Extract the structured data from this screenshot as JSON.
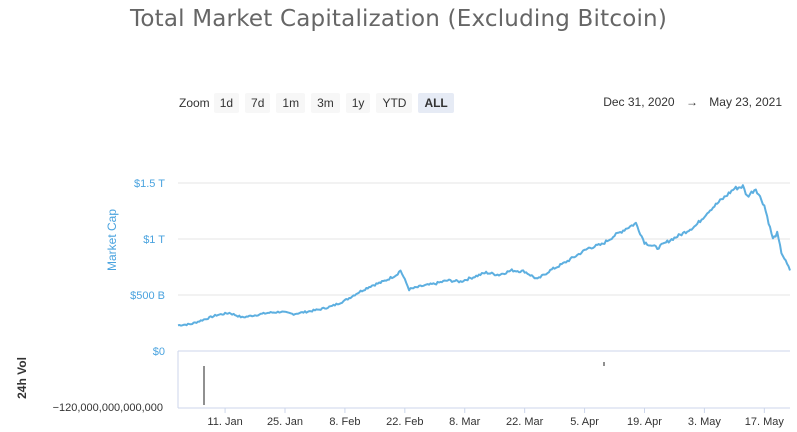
{
  "chart": {
    "title": "Total Market Capitalization (Excluding Bitcoin)",
    "zoom_label": "Zoom",
    "zoom_buttons": [
      "1d",
      "7d",
      "1m",
      "3m",
      "1y",
      "YTD",
      "ALL"
    ],
    "active_zoom": "ALL",
    "date_from": "Dec 31, 2020",
    "date_arrow": "→",
    "date_to": "May 23, 2021",
    "line_color": "#5dafe0"
  },
  "chart_data": {
    "type": "line",
    "title": "Total Market Capitalization (Excluding Bitcoin)",
    "xlabel": "",
    "ylabel": "Market Cap",
    "x_ticks": [
      "11. Jan",
      "25. Jan",
      "8. Feb",
      "22. Feb",
      "8. Mar",
      "22. Mar",
      "5. Apr",
      "19. Apr",
      "3. May",
      "17. May"
    ],
    "y_ticks": [
      "$0",
      "$500 B",
      "$1 T",
      "$1.5 T"
    ],
    "ylim": [
      0,
      1.5
    ],
    "y_unit": "trillion USD",
    "grid": true,
    "series": [
      {
        "x": [
          "2020-12-31",
          "2021-01-03",
          "2021-01-06",
          "2021-01-09",
          "2021-01-12",
          "2021-01-15",
          "2021-01-18",
          "2021-01-21",
          "2021-01-24",
          "2021-01-27",
          "2021-01-30",
          "2021-02-02",
          "2021-02-05",
          "2021-02-08",
          "2021-02-11",
          "2021-02-14",
          "2021-02-17",
          "2021-02-20",
          "2021-02-21",
          "2021-02-23",
          "2021-02-26",
          "2021-03-01",
          "2021-03-04",
          "2021-03-07",
          "2021-03-10",
          "2021-03-13",
          "2021-03-16",
          "2021-03-19",
          "2021-03-22",
          "2021-03-25",
          "2021-03-28",
          "2021-03-31",
          "2021-04-03",
          "2021-04-06",
          "2021-04-09",
          "2021-04-12",
          "2021-04-15",
          "2021-04-17",
          "2021-04-19",
          "2021-04-22",
          "2021-04-25",
          "2021-04-28",
          "2021-05-01",
          "2021-05-04",
          "2021-05-07",
          "2021-05-10",
          "2021-05-12",
          "2021-05-13",
          "2021-05-15",
          "2021-05-17",
          "2021-05-19",
          "2021-05-20",
          "2021-05-21",
          "2021-05-23"
        ],
        "values": [
          0.23,
          0.24,
          0.28,
          0.32,
          0.34,
          0.3,
          0.32,
          0.34,
          0.35,
          0.33,
          0.35,
          0.37,
          0.4,
          0.45,
          0.52,
          0.58,
          0.62,
          0.68,
          0.72,
          0.55,
          0.58,
          0.6,
          0.63,
          0.62,
          0.66,
          0.7,
          0.68,
          0.72,
          0.71,
          0.64,
          0.72,
          0.78,
          0.85,
          0.92,
          0.95,
          1.03,
          1.1,
          1.14,
          0.97,
          0.92,
          0.99,
          1.05,
          1.12,
          1.25,
          1.35,
          1.45,
          1.47,
          1.38,
          1.45,
          1.3,
          1.0,
          1.05,
          0.88,
          0.72
        ]
      }
    ],
    "volume_panel": {
      "ylabel": "24h Vol",
      "y_tick": "−120,000,000,000,000"
    }
  }
}
